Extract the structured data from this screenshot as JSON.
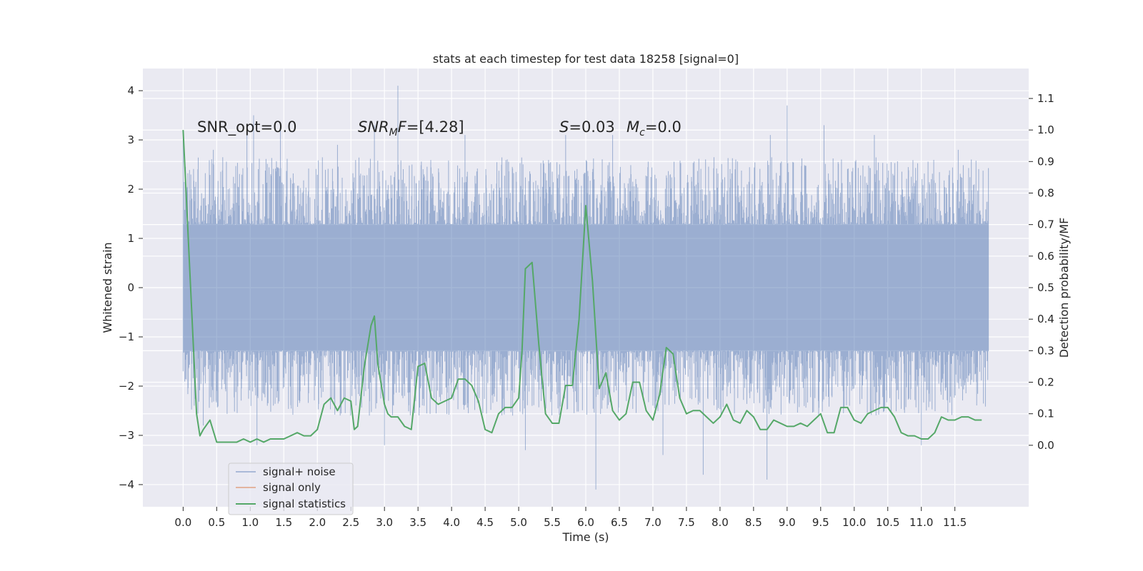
{
  "chart_data": {
    "type": "line",
    "title": "stats at each timestep for test data 18258 [signal=0]",
    "xlabel": "Time (s)",
    "ylabel": "Whitened strain",
    "y2label": "Detection probability/MF",
    "xlim": [
      -0.6,
      12.6
    ],
    "ylim": [
      -4.45,
      4.45
    ],
    "y2lim": [
      -0.195,
      1.195
    ],
    "xticks": [
      0.0,
      0.5,
      1.0,
      1.5,
      2.0,
      2.5,
      3.0,
      3.5,
      4.0,
      4.5,
      5.0,
      5.5,
      6.0,
      6.5,
      7.0,
      7.5,
      8.0,
      8.5,
      9.0,
      9.5,
      10.0,
      10.5,
      11.0,
      11.5
    ],
    "xtick_labels": [
      "0.0",
      "0.5",
      "1.0",
      "1.5",
      "2.0",
      "2.5",
      "3.0",
      "3.5",
      "4.0",
      "4.5",
      "5.0",
      "5.5",
      "6.0",
      "6.5",
      "7.0",
      "7.5",
      "8.0",
      "8.5",
      "9.0",
      "9.5",
      "10.0",
      "10.5",
      "11.0",
      "11.5"
    ],
    "yticks": [
      -4,
      -3,
      -2,
      -1,
      0,
      1,
      2,
      3,
      4
    ],
    "ytick_labels": [
      "−4",
      "−3",
      "−2",
      "−1",
      "0",
      "1",
      "2",
      "3",
      "4"
    ],
    "y2ticks": [
      0.0,
      0.1,
      0.2,
      0.3,
      0.4,
      0.5,
      0.6,
      0.7,
      0.8,
      0.9,
      1.0,
      1.1
    ],
    "y2tick_labels": [
      "0.0",
      "0.1",
      "0.2",
      "0.3",
      "0.4",
      "0.5",
      "0.6",
      "0.7",
      "0.8",
      "0.9",
      "1.0",
      "1.1"
    ],
    "grid": true,
    "legend_position": "lower-left",
    "annotations": {
      "snr_opt": "SNR_opt=0.0",
      "snr_mf_main": "SNR",
      "snr_mf_sub": "M",
      "snr_mf_rest": "F=[4.28]",
      "s_sym": "S",
      "s_val": "=0.03",
      "mc_sym": "M",
      "mc_sub": "c",
      "mc_val": "=0.0"
    },
    "noise": {
      "t_range": [
        0.0,
        12.0
      ],
      "core_amplitude": 1.3,
      "peaks_up": [
        {
          "t": 0.45,
          "y": 2.8
        },
        {
          "t": 0.95,
          "y": 3.3
        },
        {
          "t": 1.05,
          "y": 3.5
        },
        {
          "t": 1.45,
          "y": 3.3
        },
        {
          "t": 2.3,
          "y": 2.9
        },
        {
          "t": 2.85,
          "y": 3.3
        },
        {
          "t": 3.2,
          "y": 4.1
        },
        {
          "t": 4.2,
          "y": 3.1
        },
        {
          "t": 5.7,
          "y": 3.1
        },
        {
          "t": 6.4,
          "y": 3.1
        },
        {
          "t": 8.75,
          "y": 3.1
        },
        {
          "t": 9.0,
          "y": 3.7
        },
        {
          "t": 9.55,
          "y": 3.3
        },
        {
          "t": 10.3,
          "y": 3.1
        },
        {
          "t": 11.55,
          "y": 2.8
        }
      ],
      "peaks_down": [
        {
          "t": 0.3,
          "y": -2.8
        },
        {
          "t": 1.1,
          "y": -3.2
        },
        {
          "t": 3.0,
          "y": -3.2
        },
        {
          "t": 5.1,
          "y": -3.3
        },
        {
          "t": 6.15,
          "y": -4.1
        },
        {
          "t": 7.15,
          "y": -3.4
        },
        {
          "t": 7.75,
          "y": -3.8
        },
        {
          "t": 8.7,
          "y": -3.9
        },
        {
          "t": 11.0,
          "y": -3.2
        }
      ]
    },
    "series": [
      {
        "name": "signal+ noise",
        "color": "#4c72b0",
        "axis": "left"
      },
      {
        "name": "signal only",
        "color": "#dd8452",
        "axis": "left",
        "x": [],
        "y": []
      },
      {
        "name": "signal statistics",
        "color": "#55a868",
        "axis": "right",
        "x": [
          0.0,
          0.1,
          0.2,
          0.25,
          0.3,
          0.4,
          0.5,
          0.6,
          0.7,
          0.8,
          0.9,
          1.0,
          1.1,
          1.2,
          1.3,
          1.4,
          1.5,
          1.6,
          1.7,
          1.8,
          1.9,
          2.0,
          2.1,
          2.2,
          2.3,
          2.4,
          2.5,
          2.55,
          2.6,
          2.7,
          2.8,
          2.85,
          2.9,
          3.0,
          3.05,
          3.1,
          3.2,
          3.3,
          3.4,
          3.5,
          3.6,
          3.7,
          3.8,
          3.9,
          4.0,
          4.1,
          4.2,
          4.3,
          4.4,
          4.5,
          4.6,
          4.7,
          4.8,
          4.9,
          5.0,
          5.05,
          5.1,
          5.2,
          5.3,
          5.4,
          5.5,
          5.6,
          5.7,
          5.8,
          5.9,
          6.0,
          6.1,
          6.2,
          6.3,
          6.4,
          6.5,
          6.6,
          6.7,
          6.8,
          6.9,
          7.0,
          7.1,
          7.2,
          7.3,
          7.4,
          7.5,
          7.6,
          7.7,
          7.8,
          7.9,
          8.0,
          8.1,
          8.2,
          8.3,
          8.4,
          8.5,
          8.6,
          8.7,
          8.8,
          8.9,
          9.0,
          9.1,
          9.2,
          9.3,
          9.4,
          9.5,
          9.6,
          9.7,
          9.8,
          9.9,
          10.0,
          10.1,
          10.2,
          10.3,
          10.4,
          10.5,
          10.6,
          10.7,
          10.8,
          10.9,
          11.0,
          11.1,
          11.2,
          11.3,
          11.4,
          11.5,
          11.6,
          11.7,
          11.8,
          11.9
        ],
        "y": [
          1.0,
          0.55,
          0.1,
          0.03,
          0.05,
          0.08,
          0.01,
          0.01,
          0.01,
          0.01,
          0.02,
          0.01,
          0.02,
          0.01,
          0.02,
          0.02,
          0.02,
          0.03,
          0.04,
          0.03,
          0.03,
          0.05,
          0.13,
          0.15,
          0.11,
          0.15,
          0.14,
          0.05,
          0.06,
          0.25,
          0.38,
          0.41,
          0.26,
          0.13,
          0.1,
          0.09,
          0.09,
          0.06,
          0.05,
          0.25,
          0.26,
          0.15,
          0.13,
          0.14,
          0.15,
          0.21,
          0.21,
          0.19,
          0.14,
          0.05,
          0.04,
          0.1,
          0.12,
          0.12,
          0.15,
          0.3,
          0.56,
          0.58,
          0.32,
          0.1,
          0.07,
          0.07,
          0.19,
          0.19,
          0.4,
          0.76,
          0.52,
          0.18,
          0.23,
          0.11,
          0.08,
          0.1,
          0.2,
          0.2,
          0.11,
          0.08,
          0.16,
          0.31,
          0.29,
          0.15,
          0.1,
          0.11,
          0.11,
          0.09,
          0.07,
          0.09,
          0.13,
          0.08,
          0.07,
          0.11,
          0.09,
          0.05,
          0.05,
          0.08,
          0.07,
          0.06,
          0.06,
          0.07,
          0.06,
          0.08,
          0.1,
          0.04,
          0.04,
          0.12,
          0.12,
          0.08,
          0.07,
          0.1,
          0.11,
          0.12,
          0.12,
          0.09,
          0.04,
          0.03,
          0.03,
          0.02,
          0.02,
          0.04,
          0.09,
          0.08,
          0.08,
          0.09,
          0.09,
          0.08,
          0.08
        ]
      }
    ]
  }
}
